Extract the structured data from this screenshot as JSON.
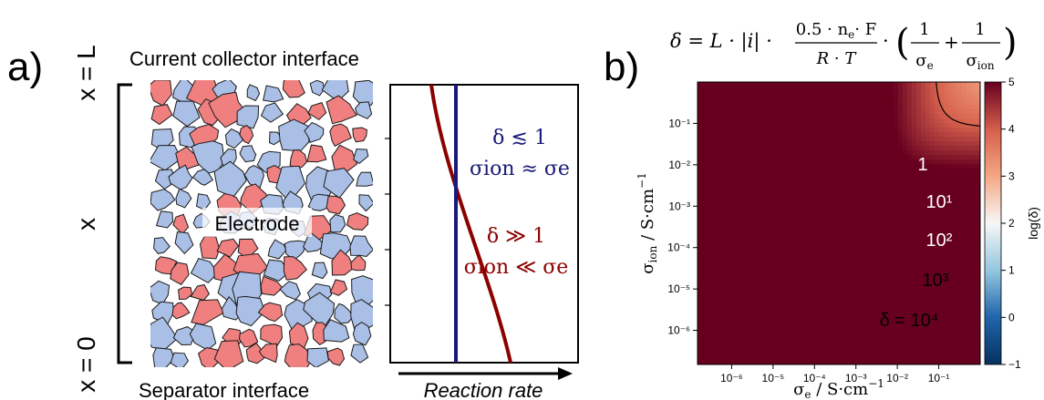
{
  "panel_a": {
    "label": "a)",
    "top_label": "Current collector interface",
    "bottom_label": "Separator interface",
    "axis_top": "x = L",
    "axis_mid": "x",
    "axis_bottom": "x = 0",
    "electrode_label": "Electrode",
    "rate_axis_label": "Reaction rate",
    "blue_regime": {
      "line1": "δ ≲ 1",
      "line2": "σion ≈ σe",
      "color": "#1a1a7a"
    },
    "red_regime": {
      "line1": "δ ≫ 1",
      "line2": "σion ≪ σe",
      "color": "#8b0000"
    },
    "colors": {
      "active": "#f08080",
      "electrolyte": "#aabfe6",
      "outline": "#1a1a1a"
    }
  },
  "panel_b": {
    "label": "b)",
    "equation": "δ = L · |i| · (0.5 · ne · F) / (R · T) · (1/σe + 1/σion)",
    "colorbar_label": "log(δ)",
    "colorbar_ticks": [
      "5",
      "4",
      "3",
      "2",
      "1",
      "0",
      "−1"
    ],
    "colorbar_colors": {
      "high": "#67001f",
      "mid": "#f7f7f7",
      "low": "#053061"
    }
  },
  "chart_data": {
    "type": "heatmap",
    "xlabel": "σe / S·cm⁻¹",
    "ylabel": "σion / S·cm⁻¹",
    "xscale": "log",
    "yscale": "log",
    "x_ticks": [
      "10⁻⁶",
      "10⁻⁵",
      "10⁻⁴",
      "10⁻³",
      "10⁻²",
      "10⁻¹"
    ],
    "y_ticks": [
      "10⁻¹",
      "10⁻²",
      "10⁻³",
      "10⁻⁴",
      "10⁻⁵",
      "10⁻⁶"
    ],
    "xlim": [
      1.5e-07,
      1
    ],
    "ylim": [
      1.5e-07,
      1
    ],
    "contour_levels": [
      {
        "log_delta": 0,
        "label": "1"
      },
      {
        "log_delta": 1,
        "label": "10¹"
      },
      {
        "log_delta": 2,
        "label": "10²"
      },
      {
        "log_delta": 3,
        "label": "10³"
      },
      {
        "log_delta": 4,
        "label": "δ = 10⁴"
      }
    ],
    "colorbar_range": [
      -1,
      5
    ]
  }
}
